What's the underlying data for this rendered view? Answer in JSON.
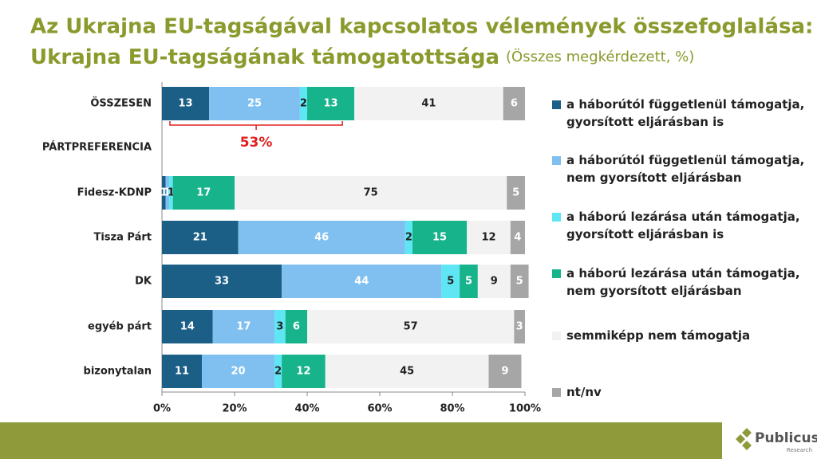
{
  "chart_data": {
    "type": "stacked-bar-horizontal",
    "title": [
      "Az Ukrajna EU-tagságával kapcsolatos vélemények összefoglalása:",
      "Ukrajna EU-tagságának támogatottsága"
    ],
    "subtitle": "(Összes megkérdezett, %)",
    "categories": [
      "ÖSSZESEN",
      "PÁRTPREFERENCIA",
      "Fidesz-KDNP",
      "Tisza Párt",
      "DK",
      "egyéb párt",
      "bizonytalan"
    ],
    "series": [
      {
        "name": "a háborútól függetlenül támogatja, gyorsított eljárásban is",
        "color": "#1b5e86",
        "values": [
          13,
          null,
          1,
          21,
          33,
          14,
          11
        ]
      },
      {
        "name": "a háborútól függetlenül támogatja, nem gyorsított eljárásban",
        "color": "#7fc0f0",
        "values": [
          25,
          null,
          1,
          46,
          44,
          17,
          20
        ]
      },
      {
        "name": "a háború lezárása után támogatja, gyorsított eljárásban is",
        "color": "#5fe6f5",
        "values": [
          2,
          null,
          1,
          2,
          5,
          3,
          2
        ]
      },
      {
        "name": "a háború lezárása után támogatja, nem gyorsított eljárásban",
        "color": "#17b38a",
        "values": [
          13,
          null,
          17,
          15,
          5,
          6,
          12
        ]
      },
      {
        "name": "semmiképp nem támogatja",
        "color": "#f2f2f2",
        "values": [
          41,
          null,
          75,
          12,
          9,
          57,
          45
        ]
      },
      {
        "name": "nt/nv",
        "color": "#a6a6a6",
        "values": [
          6,
          null,
          5,
          4,
          5,
          3,
          9
        ]
      }
    ],
    "xlim": [
      0,
      100
    ],
    "xticks": [
      {
        "value": 0,
        "label": "0%"
      },
      {
        "value": 20,
        "label": "20%"
      },
      {
        "value": 40,
        "label": "40%"
      },
      {
        "value": 60,
        "label": "60%"
      },
      {
        "value": 80,
        "label": "80%"
      },
      {
        "value": 100,
        "label": "100%"
      }
    ],
    "bracket": {
      "value": 53,
      "label": "53%"
    },
    "grid": false
  },
  "logo": {
    "name": "Publicus",
    "sub": "Research"
  }
}
